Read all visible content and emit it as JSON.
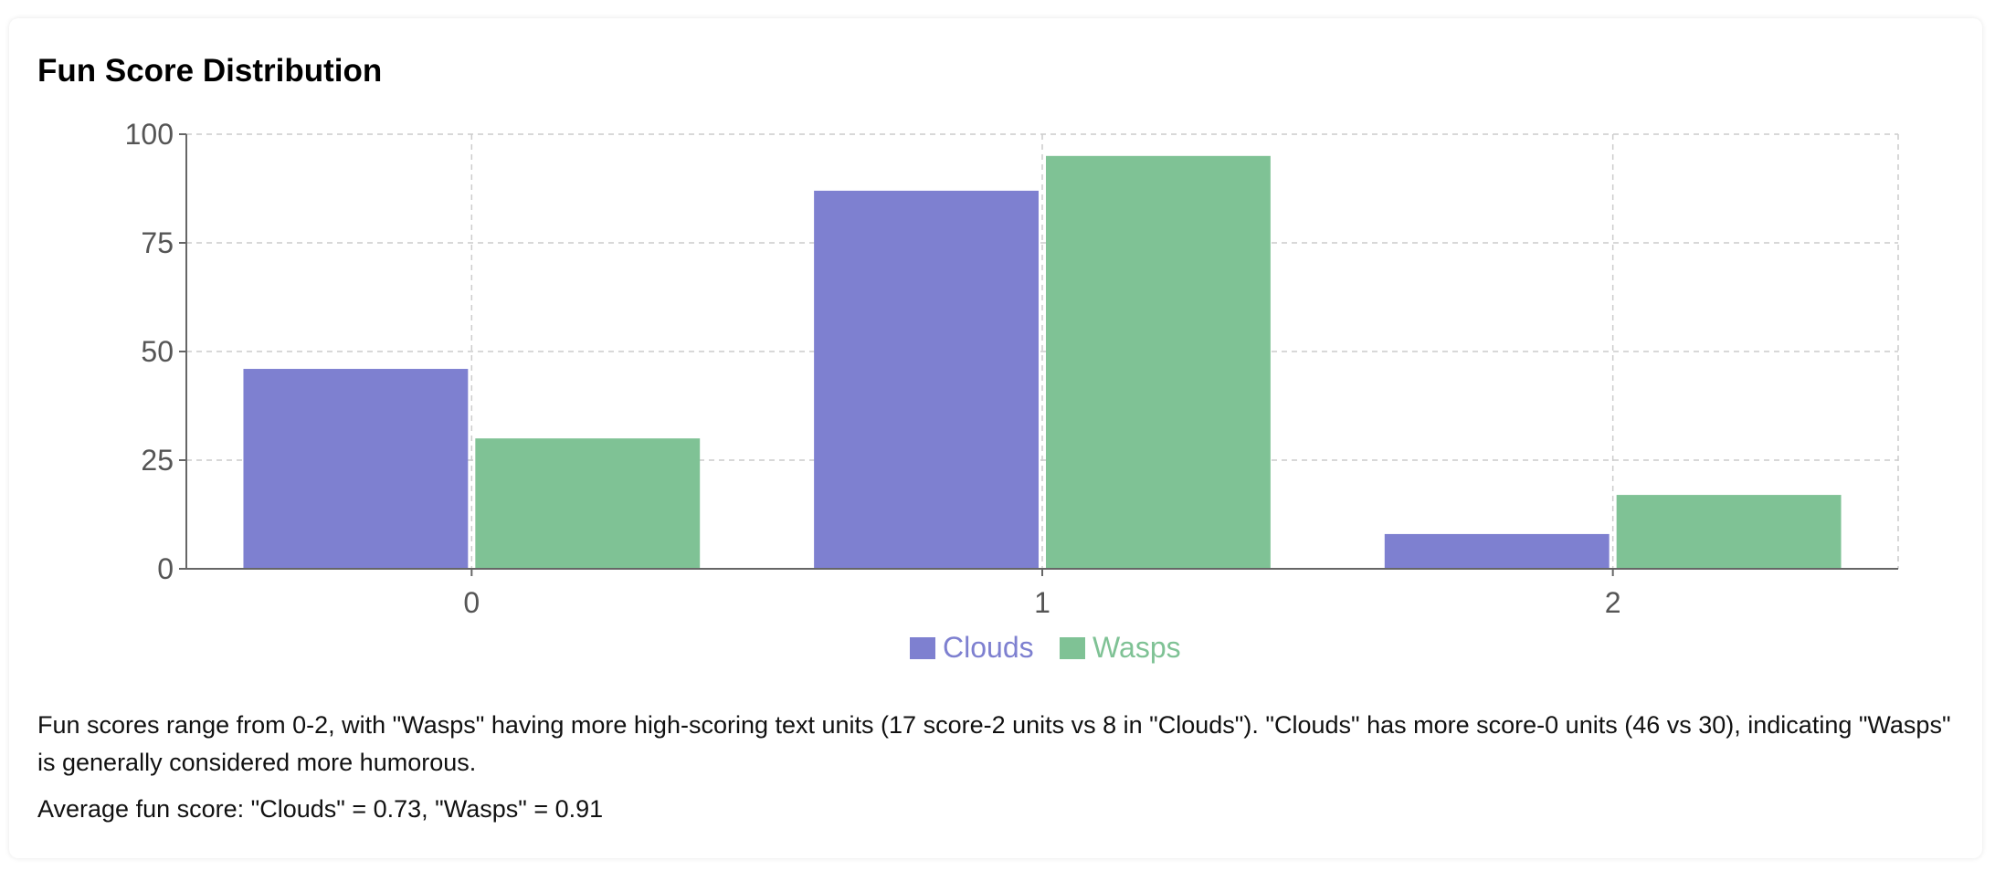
{
  "title": "Fun Score Distribution",
  "summary": "Fun scores range from 0-2, with \"Wasps\" having more high-scoring text units (17 score-2 units vs 8 in \"Clouds\"). \"Clouds\" has more score-0 units (46 vs 30), indicating \"Wasps\" is generally considered more humorous.",
  "average": "Average fun score: \"Clouds\" = 0.73, \"Wasps\" = 0.91",
  "chart_data": {
    "type": "bar",
    "categories": [
      "0",
      "1",
      "2"
    ],
    "series": [
      {
        "name": "Clouds",
        "values": [
          46,
          87,
          8
        ],
        "color": "#7e80d0"
      },
      {
        "name": "Wasps",
        "values": [
          30,
          95,
          17
        ],
        "color": "#7fc295"
      }
    ],
    "ylim": [
      0,
      100
    ],
    "yticks": [
      0,
      25,
      50,
      75,
      100
    ],
    "grid": true,
    "legend": "bottom-center"
  }
}
